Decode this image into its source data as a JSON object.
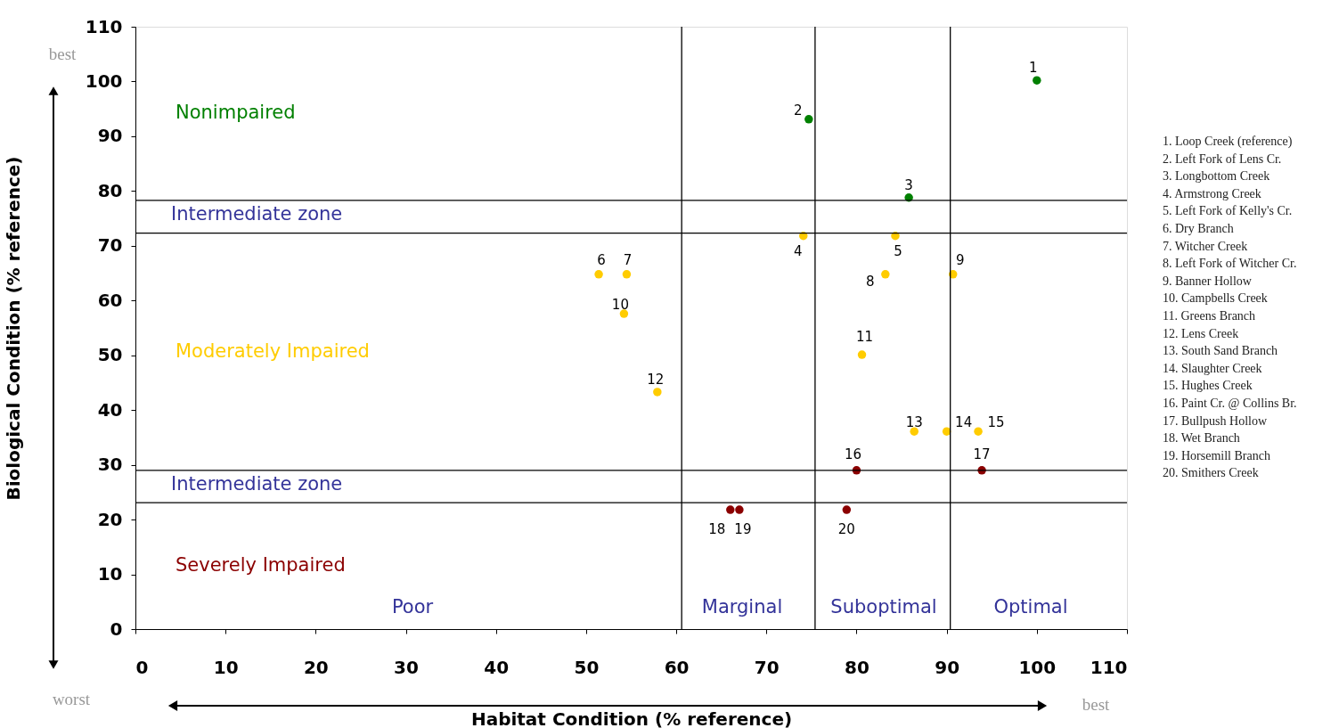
{
  "chart_data": {
    "type": "scatter",
    "xlabel": "Habitat Condition (% reference)",
    "ylabel": "Biological Condition (% reference)",
    "xlim": [
      0,
      110
    ],
    "ylim": [
      0,
      110
    ],
    "xticks": [
      0,
      10,
      20,
      30,
      40,
      50,
      60,
      70,
      80,
      90,
      100,
      110
    ],
    "yticks": [
      0,
      10,
      20,
      30,
      40,
      50,
      60,
      70,
      80,
      90,
      100,
      110
    ],
    "grid": false,
    "legend": false,
    "marker": "circle",
    "series": [
      {
        "name": "Nonimpaired",
        "color": "#008000",
        "x": [
          100,
          74.7,
          85.8
        ],
        "values": [
          100.2,
          93.1,
          78.8
        ]
      },
      {
        "name": "Moderately Impaired",
        "color": "#ffcc00",
        "x": [
          74.1,
          84.3,
          51.4,
          54.5,
          83.2,
          90.7,
          54.2,
          80.6,
          57.9,
          86.4,
          90.0,
          93.5
        ],
        "values": [
          71.8,
          71.8,
          64.8,
          64.8,
          64.8,
          64.8,
          57.6,
          50.1,
          43.3,
          36.1,
          36.1,
          36.1
        ]
      },
      {
        "name": "Severely Impaired",
        "color": "#8b0000",
        "x": [
          80.0,
          93.9,
          66.0,
          67.0,
          78.9
        ],
        "values": [
          29.0,
          29.0,
          21.8,
          21.8,
          21.8
        ]
      }
    ],
    "ref_lines": [
      {
        "axis": "y",
        "value": 78.3,
        "label": "Intermediate zone"
      },
      {
        "axis": "y",
        "value": 72.3
      },
      {
        "axis": "y",
        "value": 29.0,
        "label": "Intermediate zone"
      },
      {
        "axis": "y",
        "value": 23.1
      },
      {
        "axis": "x",
        "value": 60.6
      },
      {
        "axis": "x",
        "value": 75.4
      },
      {
        "axis": "x",
        "value": 90.4
      }
    ],
    "annotations": [
      "1",
      "2",
      "3",
      "4",
      "5",
      "6",
      "7",
      "8",
      "9",
      "10",
      "11",
      "12",
      "13",
      "14",
      "15",
      "16",
      "17",
      "18",
      "19",
      "20",
      "best",
      "worst",
      "best",
      "Poor",
      "Marginal",
      "Suboptimal",
      "Optimal",
      "1. Loop Creek (reference)",
      "2. Left Fork of Lens Cr.",
      "3. Longbottom Creek",
      "4. Armstrong Creek",
      "5. Left Fork of Kelly's Cr.",
      "6. Dry Branch",
      "7. Witcher Creek",
      "8. Left Fork of Witcher Cr.",
      "9. Banner Hollow",
      "10. Campbells Creek",
      "11. Greens Branch",
      "12. Lens Creek",
      "13. South Sand Branch",
      "14. Slaughter Creek",
      "15. Hughes Creek",
      "16. Paint Cr. @ Collins Br.",
      "17. Bullpush  Hollow",
      "18. Wet Branch",
      "19. Horsemill Branch",
      "20. Smithers Creek"
    ]
  }
}
